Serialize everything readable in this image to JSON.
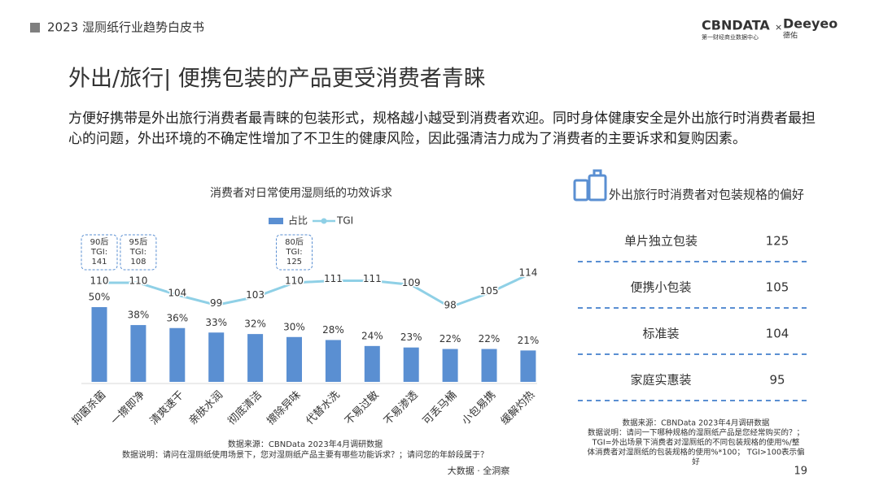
{
  "header": {
    "title": "2023 湿厕纸行业趋势白皮书",
    "logo": "CBNDATA",
    "logo_sub": "第一财经商业数据中心",
    "times": "×",
    "brand": "Deeyeo",
    "brand_sub": "德佑"
  },
  "title": "外出/旅行| 便携包装的产品更受消费者青睐",
  "paragraph": "方便好携带是外出旅行消费者最青睐的包装形式，规格越小越受到消费者欢迎。同时身体健康安全是外出旅行时消费者最担心的问题，外出环境的不确定性增加了不卫生的健康风险，因此强清洁力成为了消费者的主要诉求和复购因素。",
  "chart_data": {
    "type": "bar",
    "title": "消费者对日常使用湿厕纸的功效诉求",
    "categories": [
      "抑菌杀菌",
      "一擦即净",
      "清爽速干",
      "亲肤水润",
      "彻底清洁",
      "擦除异味",
      "代替水洗",
      "不易过敏",
      "不易渗透",
      "可丢马桶",
      "小包易携",
      "缓解灼热"
    ],
    "series": [
      {
        "name": "占比",
        "type": "bar",
        "color": "#5a8fd2",
        "values": [
          50,
          38,
          36,
          33,
          32,
          30,
          28,
          24,
          23,
          22,
          22,
          21
        ],
        "value_labels": [
          "50%",
          "38%",
          "36%",
          "33%",
          "32%",
          "30%",
          "28%",
          "24%",
          "23%",
          "22%",
          "22%",
          "21%"
        ]
      },
      {
        "name": "TGI",
        "type": "line",
        "color": "#8fd0e6",
        "values": [
          110,
          110,
          104,
          99,
          103,
          110,
          111,
          111,
          109,
          98,
          105,
          114
        ]
      }
    ],
    "annotations": [
      {
        "group": "90后",
        "label": "TGI:",
        "value": 141
      },
      {
        "group": "95后",
        "label": "TGI:",
        "value": 108
      },
      null,
      null,
      null,
      {
        "group": "80后",
        "label": "TGI:",
        "value": 125
      },
      null,
      null,
      null,
      null,
      null,
      null
    ],
    "notes": [
      "数据来源：CBNData 2023年4月调研数据",
      "数据说明：请问在湿厕纸使用场景下，您对湿厕纸产品主要有哪些功能诉求？；请问您的年龄段属于？"
    ]
  },
  "table": {
    "title": "外出旅行时消费者对包装规格的偏好",
    "rows": [
      [
        "单片独立包装",
        125
      ],
      [
        "便携小包装",
        105
      ],
      [
        "标准装",
        104
      ],
      [
        "家庭实惠装",
        95
      ]
    ],
    "notes": [
      "数据来源：CBNData 2023年4月调研数据",
      "数据说明：请问一下哪种规格的湿厕纸产品是您经常购买的？；",
      "TGI=外出场景下消费者对湿厕纸的不同包装规格的使用%/整",
      "体消费者对湿厕纸的包装规格的使用%*100； TGI>100表示偏",
      "好"
    ]
  },
  "footer": {
    "slogan": "大数据 · 全洞察",
    "page": "19"
  }
}
